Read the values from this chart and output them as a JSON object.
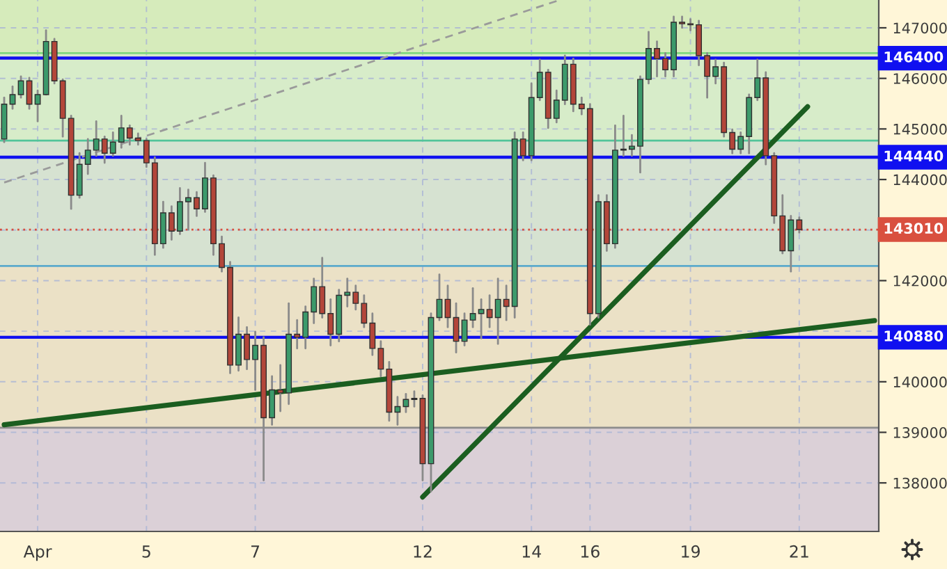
{
  "chart_data": {
    "type": "candlestick",
    "categories": [
      null,
      null,
      null,
      null,
      "Apr",
      null,
      null,
      null,
      null,
      null,
      null,
      null,
      null,
      null,
      null,
      null,
      null,
      "5",
      null,
      null,
      null,
      null,
      null,
      null,
      null,
      null,
      null,
      null,
      null,
      null,
      "7",
      null,
      null,
      null,
      null,
      null,
      null,
      null,
      null,
      null,
      null,
      null,
      null,
      null,
      null,
      null,
      null,
      null,
      null,
      null,
      "12",
      null,
      null,
      null,
      null,
      null,
      null,
      null,
      null,
      null,
      null,
      null,
      null,
      "14",
      null,
      null,
      null,
      null,
      null,
      null,
      "16",
      null,
      null,
      null,
      null,
      null,
      null,
      null,
      null,
      null,
      null,
      null,
      "19",
      null,
      null,
      null,
      null,
      null,
      null,
      null,
      null,
      null,
      null,
      null,
      null,
      "21",
      null,
      null,
      null,
      null,
      null,
      null,
      null,
      null,
      null
    ],
    "ohlc": [
      [
        144800,
        145620,
        144740,
        145490
      ],
      [
        145490,
        145840,
        145400,
        145680
      ],
      [
        145680,
        146040,
        145620,
        145950
      ],
      [
        145950,
        146010,
        145400,
        145490
      ],
      [
        145490,
        145760,
        145150,
        145680
      ],
      [
        145680,
        146950,
        145680,
        146730
      ],
      [
        146730,
        146780,
        145900,
        145950
      ],
      [
        145950,
        145980,
        144850,
        145210
      ],
      [
        145210,
        145260,
        143420,
        143690
      ],
      [
        143690,
        144520,
        143640,
        144300
      ],
      [
        144300,
        144800,
        144110,
        144580
      ],
      [
        144580,
        145150,
        144470,
        144800
      ],
      [
        144800,
        144850,
        144330,
        144520
      ],
      [
        144520,
        144930,
        144470,
        144740
      ],
      [
        144740,
        145260,
        144630,
        145020
      ],
      [
        145020,
        145070,
        144690,
        144820
      ],
      [
        144820,
        144910,
        144690,
        144770
      ],
      [
        144770,
        144800,
        144250,
        144330
      ],
      [
        144330,
        144440,
        142510,
        142730
      ],
      [
        142730,
        143560,
        142650,
        143340
      ],
      [
        143340,
        143470,
        142810,
        142980
      ],
      [
        142980,
        143830,
        142920,
        143560
      ],
      [
        143560,
        143800,
        143010,
        143640
      ],
      [
        143640,
        143750,
        143280,
        143420
      ],
      [
        143420,
        144330,
        143360,
        144030
      ],
      [
        144030,
        144080,
        142510,
        142730
      ],
      [
        142730,
        142870,
        142180,
        142260
      ],
      [
        142260,
        142370,
        140170,
        140330
      ],
      [
        140330,
        141270,
        140220,
        140940
      ],
      [
        140940,
        141080,
        140250,
        140440
      ],
      [
        140440,
        140990,
        139840,
        140720
      ],
      [
        140720,
        140880,
        138050,
        139290
      ],
      [
        139290,
        140110,
        139150,
        139840
      ],
      [
        139840,
        140330,
        139420,
        139780
      ],
      [
        139780,
        141550,
        139560,
        140940
      ],
      [
        140940,
        141220,
        140660,
        140880
      ],
      [
        140880,
        141490,
        140660,
        141380
      ],
      [
        141380,
        142040,
        141160,
        141880
      ],
      [
        141880,
        142450,
        141270,
        141350
      ],
      [
        141350,
        141630,
        140720,
        140940
      ],
      [
        140940,
        141820,
        140800,
        141710
      ],
      [
        141710,
        142040,
        141490,
        141770
      ],
      [
        141770,
        141900,
        141430,
        141550
      ],
      [
        141550,
        141710,
        141080,
        141160
      ],
      [
        141160,
        141350,
        140530,
        140660
      ],
      [
        140660,
        140800,
        140110,
        140250
      ],
      [
        140250,
        140390,
        139230,
        139400
      ],
      [
        139400,
        139700,
        139150,
        139510
      ],
      [
        139510,
        139760,
        139400,
        139650
      ],
      [
        139650,
        139810,
        139510,
        139670
      ],
      [
        139670,
        139730,
        138050,
        138380
      ],
      [
        138380,
        141350,
        137830,
        141270
      ],
      [
        141270,
        142120,
        141220,
        141630
      ],
      [
        141630,
        141900,
        141080,
        141270
      ],
      [
        141270,
        141550,
        140580,
        140800
      ],
      [
        140800,
        141350,
        140720,
        141220
      ],
      [
        141220,
        141850,
        141080,
        141350
      ],
      [
        141350,
        141630,
        140860,
        141430
      ],
      [
        141430,
        141710,
        141080,
        141270
      ],
      [
        141270,
        142040,
        140750,
        141630
      ],
      [
        141630,
        141900,
        141220,
        141490
      ],
      [
        141490,
        144930,
        141270,
        144800
      ],
      [
        144800,
        144930,
        144380,
        144470
      ],
      [
        144470,
        145900,
        144380,
        145620
      ],
      [
        145620,
        146370,
        145570,
        146120
      ],
      [
        146120,
        146170,
        145020,
        145210
      ],
      [
        145210,
        145760,
        145130,
        145570
      ],
      [
        145570,
        146450,
        145490,
        146280
      ],
      [
        146280,
        146390,
        145350,
        145490
      ],
      [
        145490,
        145620,
        145290,
        145400
      ],
      [
        145400,
        145490,
        141130,
        141350
      ],
      [
        141350,
        143690,
        141270,
        143560
      ],
      [
        143560,
        143690,
        142590,
        142730
      ],
      [
        142730,
        145070,
        142650,
        144580
      ],
      [
        144580,
        145260,
        144470,
        144600
      ],
      [
        144600,
        144880,
        144470,
        144660
      ],
      [
        144660,
        146040,
        144140,
        145980
      ],
      [
        145980,
        146920,
        145900,
        146590
      ],
      [
        146590,
        146730,
        146040,
        146390
      ],
      [
        146390,
        146500,
        146040,
        146170
      ],
      [
        146170,
        147220,
        146040,
        147110
      ],
      [
        147110,
        147220,
        147000,
        147080
      ],
      [
        147080,
        147170,
        146950,
        147060
      ],
      [
        147060,
        147140,
        146260,
        146450
      ],
      [
        146450,
        146500,
        145620,
        146040
      ],
      [
        146040,
        146370,
        145900,
        146230
      ],
      [
        146230,
        146310,
        144850,
        144930
      ],
      [
        144930,
        144990,
        144520,
        144600
      ],
      [
        144600,
        144930,
        144520,
        144850
      ],
      [
        144850,
        145680,
        144520,
        145620
      ],
      [
        145620,
        146370,
        145570,
        146010
      ],
      [
        146010,
        146120,
        144300,
        144470
      ],
      [
        144470,
        144520,
        143140,
        143280
      ],
      [
        143280,
        143690,
        142540,
        142590
      ],
      [
        142590,
        143280,
        142180,
        143200
      ],
      [
        143200,
        143250,
        142950,
        143010
      ],
      null,
      null,
      null,
      null,
      null,
      null,
      null,
      null,
      null
    ],
    "colors": [
      "#3c9a6b",
      "#3c9a6b",
      "#3c9a6b",
      "#b3463a",
      "#3c9a6b",
      "#3c9a6b",
      "#b3463a",
      "#b3463a",
      "#b3463a",
      "#3c9a6b",
      "#3c9a6b",
      "#3c9a6b",
      "#b3463a",
      "#3c9a6b",
      "#3c9a6b",
      "#b3463a",
      "#b3463a",
      "#b3463a",
      "#b3463a",
      "#3c9a6b",
      "#b3463a",
      "#3c9a6b",
      "#3c9a6b",
      "#b3463a",
      "#3c9a6b",
      "#b3463a",
      "#b3463a",
      "#b3463a",
      "#3c9a6b",
      "#b3463a",
      "#3c9a6b",
      "#b3463a",
      "#3c9a6b",
      "#b3463a",
      "#3c9a6b",
      "#b3463a",
      "#3c9a6b",
      "#3c9a6b",
      "#b3463a",
      "#b3463a",
      "#3c9a6b",
      "#3c9a6b",
      "#b3463a",
      "#b3463a",
      "#b3463a",
      "#b3463a",
      "#b3463a",
      "#3c9a6b",
      "#3c9a6b",
      "#3c9a6b",
      "#b3463a",
      "#3c9a6b",
      "#3c9a6b",
      "#b3463a",
      "#b3463a",
      "#3c9a6b",
      "#3c9a6b",
      "#3c9a6b",
      "#b3463a",
      "#3c9a6b",
      "#b3463a",
      "#3c9a6b",
      "#b3463a",
      "#3c9a6b",
      "#3c9a6b",
      "#b3463a",
      "#3c9a6b",
      "#3c9a6b",
      "#b3463a",
      "#b3463a",
      "#b3463a",
      "#3c9a6b",
      "#b3463a",
      "#3c9a6b",
      "#3c9a6b",
      "#3c9a6b",
      "#3c9a6b",
      "#3c9a6b",
      "#b3463a",
      "#b3463a",
      "#3c9a6b",
      "#b3463a",
      "#b3463a",
      "#b3463a",
      "#b3463a",
      "#3c9a6b",
      "#b3463a",
      "#b3463a",
      "#3c9a6b",
      "#3c9a6b",
      "#3c9a6b",
      "#b3463a",
      "#b3463a",
      "#b3463a",
      "#3c9a6b",
      "#b3463a",
      null,
      null,
      null,
      null,
      null,
      null,
      null,
      null,
      null
    ],
    "series": [
      {
        "type": "line",
        "values": [
          139150,
          null,
          null,
          null,
          null,
          null,
          null,
          null,
          null,
          null,
          null,
          null,
          null,
          null,
          null,
          null,
          null,
          null,
          null,
          null,
          null,
          null,
          null,
          null,
          null,
          null,
          null,
          null,
          null,
          null,
          null,
          null,
          null,
          null,
          null,
          null,
          null,
          null,
          null,
          null,
          null,
          null,
          null,
          null,
          null,
          null,
          null,
          null,
          null,
          null,
          null,
          null,
          null,
          null,
          null,
          null,
          null,
          null,
          null,
          null,
          null,
          null,
          null,
          null,
          null,
          null,
          null,
          null,
          null,
          null,
          null,
          null,
          null,
          null,
          null,
          null,
          null,
          null,
          null,
          null,
          null,
          null,
          null,
          null,
          null,
          null,
          null,
          null,
          null,
          null,
          null,
          null,
          null,
          null,
          null,
          null,
          null,
          null,
          null,
          null,
          null,
          null,
          null,
          null,
          141210
        ],
        "color": "#1b5e20",
        "line_style": "solid"
      },
      {
        "type": "line",
        "values": [
          null,
          null,
          null,
          null,
          null,
          null,
          null,
          null,
          null,
          null,
          null,
          null,
          null,
          null,
          null,
          null,
          null,
          null,
          null,
          null,
          null,
          null,
          null,
          null,
          null,
          null,
          null,
          null,
          null,
          null,
          null,
          null,
          null,
          null,
          null,
          null,
          null,
          null,
          null,
          null,
          null,
          null,
          null,
          null,
          null,
          null,
          null,
          null,
          null,
          null,
          137720,
          null,
          null,
          null,
          null,
          null,
          null,
          null,
          null,
          null,
          null,
          null,
          null,
          null,
          null,
          null,
          null,
          null,
          null,
          null,
          null,
          null,
          null,
          null,
          null,
          null,
          null,
          null,
          null,
          null,
          null,
          null,
          null,
          null,
          null,
          null,
          null,
          null,
          null,
          null,
          null,
          null,
          null,
          null,
          null,
          null,
          145440,
          null,
          null,
          null,
          null,
          null,
          null,
          null,
          null
        ],
        "color": "#1b5e20",
        "line_style": "solid"
      },
      {
        "type": "line",
        "values": [
          143940,
          null,
          null,
          null,
          null,
          null,
          null,
          null,
          null,
          null,
          null,
          null,
          null,
          null,
          null,
          null,
          null,
          null,
          null,
          null,
          null,
          null,
          null,
          null,
          null,
          null,
          null,
          null,
          null,
          null,
          null,
          null,
          null,
          null,
          null,
          null,
          null,
          null,
          null,
          null,
          null,
          null,
          null,
          null,
          null,
          null,
          null,
          null,
          null,
          null,
          null,
          null,
          null,
          null,
          null,
          null,
          null,
          null,
          null,
          null,
          null,
          null,
          null,
          null,
          null,
          null,
          147530,
          null,
          null,
          null,
          null,
          null,
          null,
          null,
          null,
          null,
          null,
          null,
          null,
          null,
          null,
          null,
          null,
          null,
          null,
          null,
          null,
          null,
          null,
          null,
          null,
          null,
          null,
          null,
          null,
          null,
          null,
          null,
          null,
          null,
          null,
          null,
          null,
          null,
          null
        ],
        "color": "#9a9a9a",
        "line_style": "dashed"
      }
    ],
    "ylim": [
      137040,
      147550
    ],
    "yticks": [
      138000,
      139000,
      140000,
      {
        "value": 141000,
        "label": null
      },
      142000,
      {
        "value": 143000,
        "label": null
      },
      144000,
      145000,
      146000,
      147000
    ],
    "bands": [
      {
        "axis": "y",
        "from": 146500,
        "to": 147550,
        "color": "#d6ebbb"
      },
      {
        "axis": "y",
        "from": 144770,
        "to": 146500,
        "color": "#d7ecc9"
      },
      {
        "axis": "y",
        "from": 142290,
        "to": 144770,
        "color": "#d6e2d1"
      },
      {
        "axis": "y",
        "from": 139090,
        "to": 142290,
        "color": "#ebe1c6"
      },
      {
        "axis": "y",
        "from": 137040,
        "to": 139090,
        "color": "#dbd0d7"
      }
    ],
    "ref_lines": [
      {
        "axis": "y",
        "value": 146500,
        "color": "#7ed87e"
      },
      {
        "axis": "y",
        "value": 146400,
        "label": "146400",
        "color": "#1010f0"
      },
      {
        "axis": "y",
        "value": 144770,
        "color": "#52c49a"
      },
      {
        "axis": "y",
        "value": 144440,
        "label": "144440",
        "color": "#1010f0"
      },
      {
        "axis": "y",
        "value": 143010,
        "label": "143010",
        "color": "#d9503f",
        "line_style": "dotted"
      },
      {
        "axis": "y",
        "value": 142290,
        "color": "#5aaacc"
      },
      {
        "axis": "y",
        "value": 140880,
        "label": "140880",
        "color": "#1010f0"
      },
      {
        "axis": "y",
        "value": 139090,
        "color": "#8c8c8c"
      }
    ],
    "grid": true
  }
}
